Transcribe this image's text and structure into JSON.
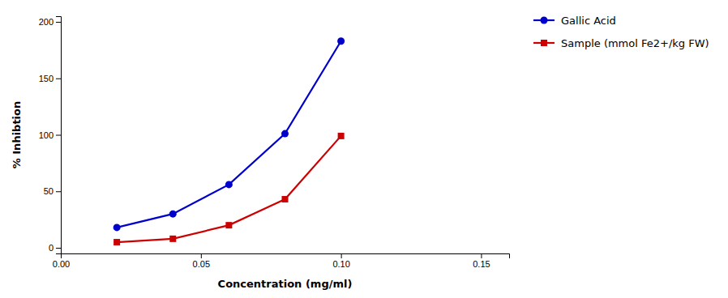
{
  "chart_data": {
    "type": "line",
    "xlabel": "Concentration (mg/ml)",
    "ylabel": "% Inhibtion",
    "x": [
      0.02,
      0.04,
      0.06,
      0.08,
      0.1
    ],
    "series": [
      {
        "name": "Gallic Acid",
        "color": "#0000CC",
        "marker": "circle",
        "values": [
          18,
          30,
          56,
          101,
          183
        ]
      },
      {
        "name": "Sample (mmol Fe2+/kg FW)",
        "color": "#CC0000",
        "marker": "square",
        "values": [
          5,
          8,
          20,
          43,
          99
        ]
      }
    ],
    "xlim": [
      0.0,
      0.16
    ],
    "ylim": [
      -5,
      205
    ],
    "xticks": [
      {
        "value": 0.0,
        "label": "0.00"
      },
      {
        "value": 0.05,
        "label": "0.05"
      },
      {
        "value": 0.1,
        "label": "0.10"
      },
      {
        "value": 0.15,
        "label": "0.15"
      }
    ],
    "yticks": [
      0,
      50,
      100,
      150,
      200
    ],
    "grid": false,
    "legend": "right"
  }
}
